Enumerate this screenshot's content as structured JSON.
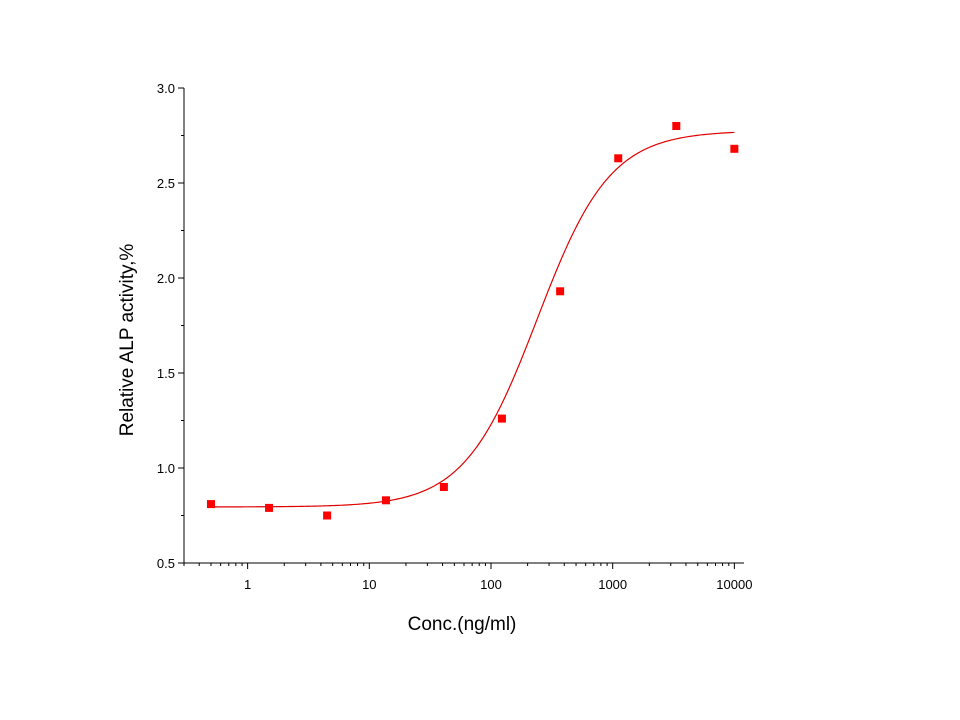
{
  "chart_data": {
    "type": "scatter",
    "title": "",
    "xlabel": "Conc.(ng/ml)",
    "ylabel": "Relative ALP activity,%",
    "x_scale": "log",
    "xlim": [
      0.3,
      12000
    ],
    "ylim": [
      0.5,
      3.0
    ],
    "x_ticks": [
      "1",
      "10",
      "100",
      "1000",
      "10000"
    ],
    "y_ticks": [
      "0.5",
      "1.0",
      "1.5",
      "2.0",
      "2.5",
      "3.0"
    ],
    "grid": false,
    "legend": "none",
    "series": [
      {
        "x": [
          0.5,
          1.5,
          4.5,
          13.7,
          41,
          123,
          370,
          1111,
          3333,
          10000
        ],
        "y": [
          0.81,
          0.79,
          0.75,
          0.83,
          0.9,
          1.26,
          1.93,
          2.63,
          2.8,
          2.68
        ],
        "color": "#ff0000",
        "marker": "square"
      }
    ],
    "fit_curve": {
      "model": "4PL",
      "bottom": 0.795,
      "top": 2.775,
      "ec50": 240,
      "hill": 1.45,
      "x_range": [
        0.5,
        10000
      ],
      "color": "#e00000"
    }
  }
}
